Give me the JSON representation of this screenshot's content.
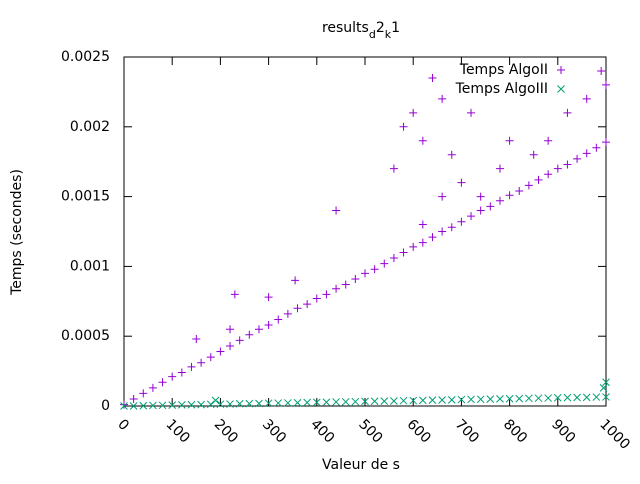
{
  "chart_data": {
    "type": "scatter",
    "title_parts": [
      {
        "text": "results"
      },
      {
        "text": "d",
        "sub": true
      },
      {
        "text": "2"
      },
      {
        "text": "k",
        "sub": true
      },
      {
        "text": "1"
      }
    ],
    "x_label": "Valeur de s",
    "y_label": "Temps (secondes)",
    "xlim": [
      0,
      1000
    ],
    "ylim": [
      0,
      0.0025
    ],
    "xticks": [
      0,
      100,
      200,
      300,
      400,
      500,
      600,
      700,
      800,
      900,
      1000
    ],
    "yticks": [
      0,
      0.0005,
      0.001,
      0.0015,
      0.002,
      0.0025
    ],
    "legend": "top-right",
    "series": [
      {
        "name": "Temps AlgoII",
        "color": "#9400d3",
        "marker": "plus",
        "x": [
          0,
          20,
          40,
          60,
          80,
          100,
          120,
          140,
          160,
          180,
          200,
          220,
          240,
          260,
          280,
          300,
          320,
          340,
          360,
          380,
          400,
          420,
          440,
          460,
          480,
          500,
          520,
          540,
          560,
          580,
          600,
          620,
          640,
          660,
          680,
          700,
          720,
          740,
          760,
          780,
          800,
          820,
          840,
          860,
          880,
          900,
          920,
          940,
          960,
          980,
          1000,
          150,
          220,
          230,
          300,
          355,
          440,
          560,
          580,
          600,
          620,
          640,
          660,
          680,
          700,
          720,
          740,
          780,
          800,
          850,
          880,
          920,
          960,
          990,
          1000,
          620,
          660
        ],
        "values": [
          1e-05,
          5e-05,
          9e-05,
          0.00013,
          0.00017,
          0.00021,
          0.00024,
          0.00028,
          0.00031,
          0.00035,
          0.00039,
          0.00043,
          0.00047,
          0.00051,
          0.00055,
          0.00058,
          0.00062,
          0.00066,
          0.0007,
          0.00073,
          0.00077,
          0.0008,
          0.00084,
          0.00087,
          0.00091,
          0.00095,
          0.00098,
          0.00102,
          0.00106,
          0.0011,
          0.00114,
          0.00117,
          0.00121,
          0.00125,
          0.00128,
          0.00132,
          0.00136,
          0.0014,
          0.00143,
          0.00147,
          0.00151,
          0.00154,
          0.00158,
          0.00162,
          0.00166,
          0.0017,
          0.00173,
          0.00177,
          0.00181,
          0.00185,
          0.00189,
          0.00048,
          0.00055,
          0.0008,
          0.00078,
          0.0009,
          0.0014,
          0.0017,
          0.002,
          0.0021,
          0.0019,
          0.00235,
          0.0022,
          0.0018,
          0.0016,
          0.0021,
          0.0015,
          0.0017,
          0.0019,
          0.0018,
          0.0019,
          0.0021,
          0.0022,
          0.0024,
          0.0023,
          0.0013,
          0.0015
        ]
      },
      {
        "name": "Temps AlgoIII",
        "color": "#009e73",
        "marker": "cross",
        "x": [
          0,
          20,
          40,
          60,
          80,
          100,
          120,
          140,
          160,
          180,
          200,
          220,
          240,
          260,
          280,
          300,
          320,
          340,
          360,
          380,
          400,
          420,
          440,
          460,
          480,
          500,
          520,
          540,
          560,
          580,
          600,
          620,
          640,
          660,
          680,
          700,
          720,
          740,
          760,
          780,
          800,
          820,
          840,
          860,
          880,
          900,
          920,
          940,
          960,
          980,
          1000,
          190,
          995,
          1000
        ],
        "values": [
          0,
          0,
          2e-06,
          4e-06,
          5e-06,
          6e-06,
          8e-06,
          9e-06,
          1e-05,
          1.2e-05,
          1.3e-05,
          1.4e-05,
          1.6e-05,
          1.7e-05,
          1.8e-05,
          2e-05,
          2.1e-05,
          2.2e-05,
          2.3e-05,
          2.5e-05,
          2.6e-05,
          2.7e-05,
          2.9e-05,
          3e-05,
          3.1e-05,
          3.3e-05,
          3.4e-05,
          3.5e-05,
          3.6e-05,
          3.8e-05,
          3.9e-05,
          4e-05,
          4.2e-05,
          4.3e-05,
          4.4e-05,
          4.6e-05,
          4.7e-05,
          4.8e-05,
          4.9e-05,
          5.1e-05,
          5.2e-05,
          5.3e-05,
          5.5e-05,
          5.6e-05,
          5.7e-05,
          5.9e-05,
          6e-05,
          6.1e-05,
          6.2e-05,
          6.4e-05,
          6.5e-05,
          4e-05,
          0.00013,
          0.00017
        ]
      }
    ]
  }
}
